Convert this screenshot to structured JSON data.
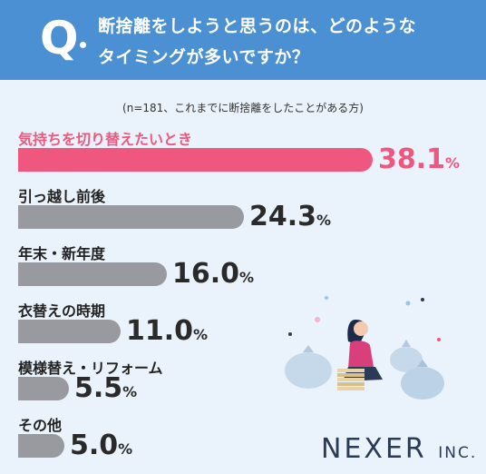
{
  "header": {
    "q_mark": "Q",
    "question_line1": "断捨離をしようと思うのは、どのような",
    "question_line2": "タイミングが多いですか？"
  },
  "note": "(n=181、これまでに断捨離をしたことがある方)",
  "logo": {
    "name": "NEXER",
    "suffix": "INC."
  },
  "colors": {
    "header": "#4a90d2",
    "highlight": "#f0577f",
    "bar": "#999a9f",
    "background": "#eaf3fb"
  },
  "chart_data": {
    "type": "bar",
    "orientation": "horizontal",
    "unit": "%",
    "categories": [
      "気持ちを切り替えたいとき",
      "引っ越し前後",
      "年末・新年度",
      "衣替えの時期",
      "模様替え・リフォーム",
      "その他"
    ],
    "values": [
      38.1,
      24.3,
      16.0,
      11.0,
      5.5,
      5.0
    ],
    "value_labels": [
      "38.1",
      "24.3",
      "16.0",
      "11.0",
      "5.5",
      "5.0"
    ],
    "highlight_index": 0
  }
}
